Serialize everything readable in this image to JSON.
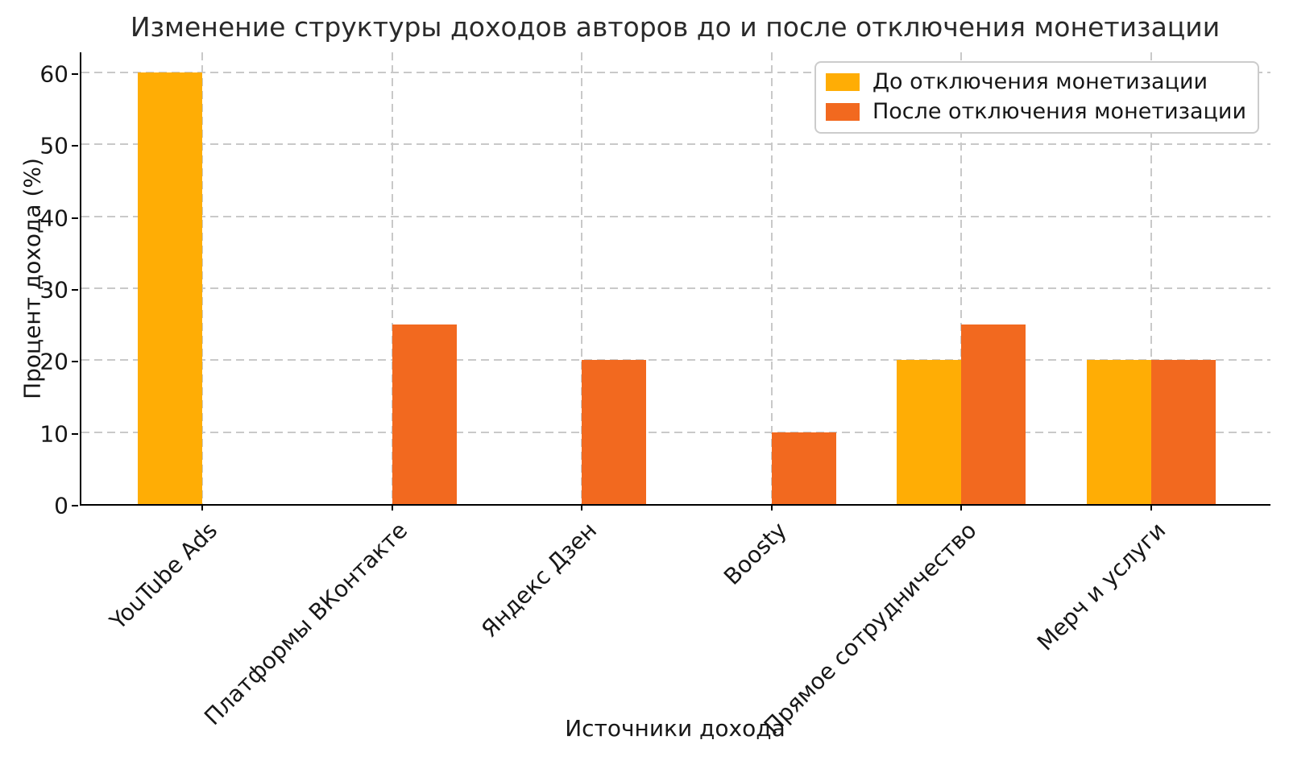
{
  "chart_data": {
    "type": "bar",
    "title": "Изменение структуры доходов авторов до и после отключения монетизации",
    "xlabel": "Источники дохода",
    "ylabel": "Процент дохода (%)",
    "categories": [
      "YouTube Ads",
      "Платформы ВКонтакте",
      "Яндекс Дзен",
      "Boosty",
      "Прямое сотрудничество",
      "Мерч и услуги"
    ],
    "series": [
      {
        "name": "До отключения монетизации",
        "color": "#FFAD05",
        "values": [
          60,
          0,
          0,
          0,
          20,
          20
        ]
      },
      {
        "name": "После отключения монетизации",
        "color": "#F2691F",
        "values": [
          0,
          25,
          20,
          10,
          25,
          20
        ]
      }
    ],
    "yticks": [
      0,
      10,
      20,
      30,
      40,
      50,
      60
    ],
    "ylim": [
      0,
      63
    ],
    "grid": "both, dashed, behind bars",
    "legend_position": "upper right",
    "grid_color": "#c9c9c9",
    "axis_color": "#000000"
  }
}
